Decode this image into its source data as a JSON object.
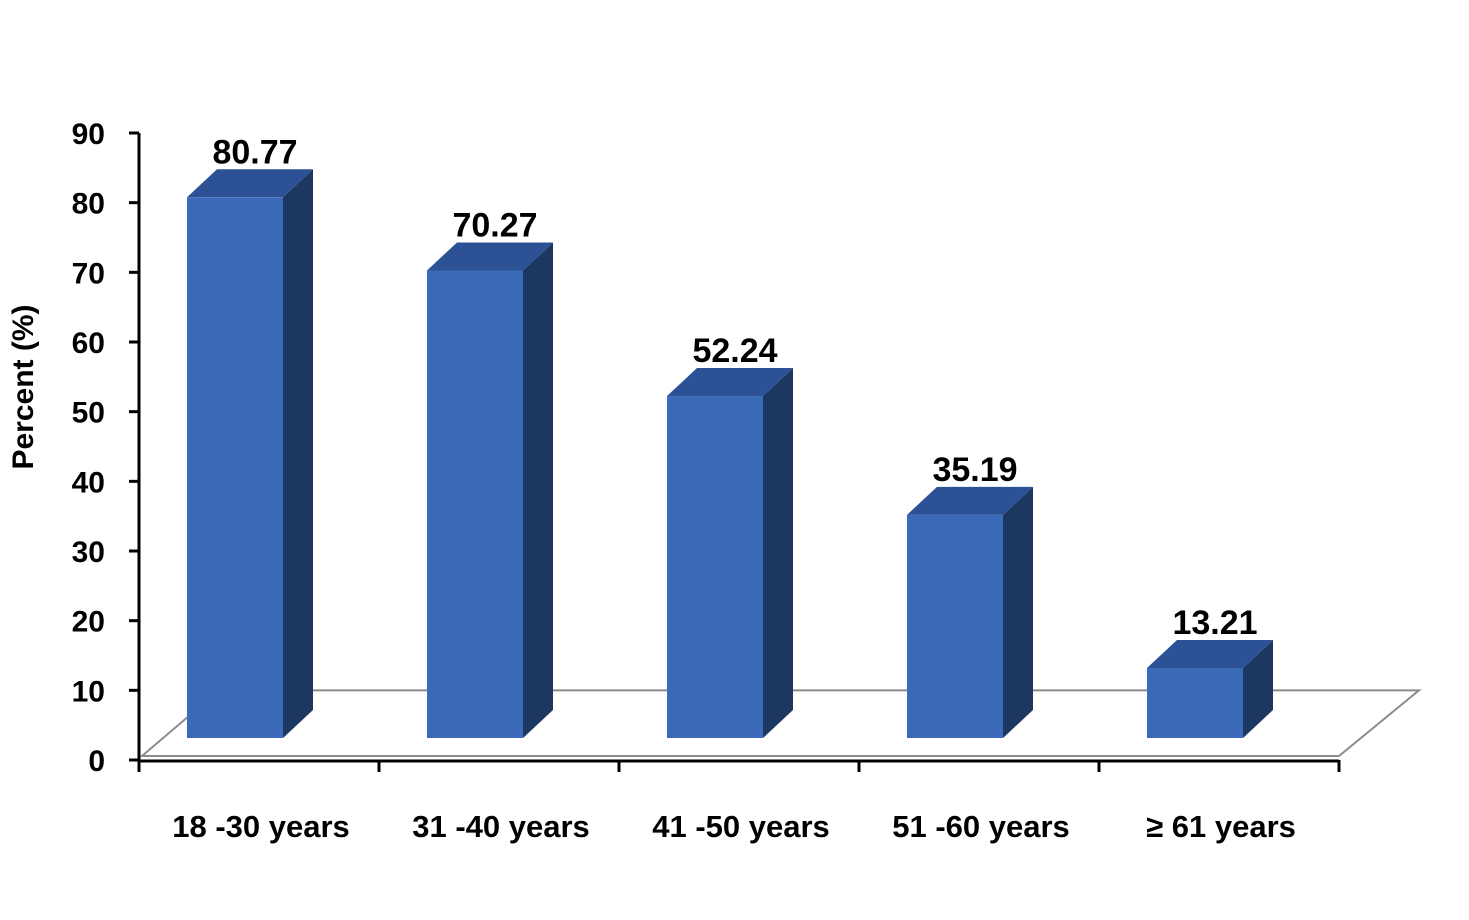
{
  "chart_data": {
    "type": "bar",
    "title": "",
    "xlabel": "",
    "ylabel": "Percent (%)",
    "categories": [
      "18 -30 years",
      "31 -40 years",
      "41 -50 years",
      "51 -60 years",
      "≥ 61 years"
    ],
    "values": [
      80.77,
      70.27,
      52.24,
      35.19,
      13.21
    ],
    "value_labels": [
      "80.77",
      "70.27",
      "52.24",
      "35.19",
      "13.21"
    ],
    "ylim": [
      0,
      90
    ],
    "yticks": [
      0,
      10,
      20,
      30,
      40,
      50,
      60,
      70,
      80,
      90
    ],
    "ytick_labels": [
      "0",
      "10",
      "20",
      "30",
      "40",
      "50",
      "60",
      "70",
      "80",
      "90"
    ],
    "grid": false,
    "legend": "none",
    "style": "3d-column",
    "colors": {
      "bar_front": "#3a6ab8",
      "bar_top": "#2c5295",
      "bar_side": "#1c3860",
      "floor_line": "#8c8c8c",
      "axis": "#000000"
    }
  }
}
